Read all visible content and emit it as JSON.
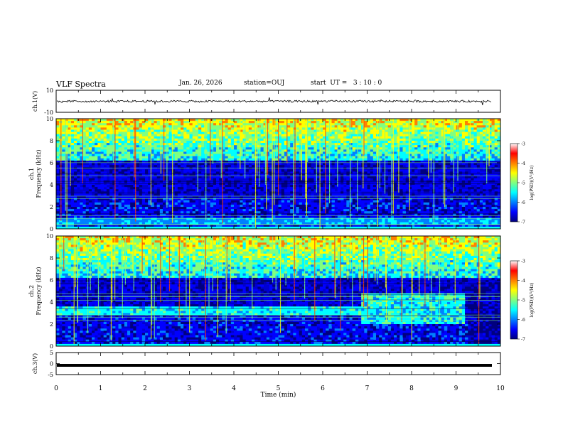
{
  "header": {
    "title": "VLF Spectra",
    "date": "Jan. 26, 2026",
    "station": "station=OUJ",
    "start": "start  UT =   3 : 10 : 0"
  },
  "colors": {
    "spectrogram_colormap": [
      "#00007f",
      "#0000ff",
      "#0080ff",
      "#00ffff",
      "#80ff80",
      "#ffff00",
      "#ff8000",
      "#ff0000",
      "#ffffff"
    ]
  },
  "chart_data": [
    {
      "id": "ch1-waveform",
      "type": "line",
      "ylabel": "ch.1(V)",
      "ylim": [
        -10,
        10
      ],
      "yticks": [
        10,
        -10
      ],
      "series": [
        {
          "description_value_mean": 0,
          "amplitude_typical": 1
        }
      ]
    },
    {
      "id": "ch1-spectrogram",
      "type": "heatmap",
      "ylabel": "ch.1\nFrequency  (kHz)",
      "ylim": [
        0,
        10
      ],
      "yticks": [
        0,
        2,
        4,
        6,
        8,
        10
      ],
      "colorbar": {
        "label": "log(PSD)(V²/Hz)",
        "range": [
          -7,
          -3
        ],
        "ticks": [
          -3,
          -4,
          -5,
          -6,
          -7
        ]
      }
    },
    {
      "id": "ch2-spectrogram",
      "type": "heatmap",
      "ylabel": "ch.2\nFrequency  (kHz)",
      "ylim": [
        0,
        10
      ],
      "yticks": [
        0,
        2,
        4,
        6,
        8,
        10
      ],
      "colorbar": {
        "label": "log(PSD)(V²/Hz)",
        "range": [
          -7,
          -3
        ],
        "ticks": [
          -3,
          -4,
          -5,
          -6,
          -7
        ]
      }
    },
    {
      "id": "ch3-waveform",
      "type": "line",
      "ylabel": "ch.3(V)",
      "ylim": [
        -5,
        5
      ],
      "yticks": [
        5,
        0,
        -5
      ],
      "series": [
        {
          "constant_value": -0.8
        }
      ]
    }
  ],
  "xaxis": {
    "label": "Time  (min)",
    "range": [
      0,
      10
    ],
    "ticks": [
      "0",
      "1",
      "2",
      "3",
      "4",
      "5",
      "6",
      "7",
      "8",
      "9",
      "10"
    ]
  }
}
